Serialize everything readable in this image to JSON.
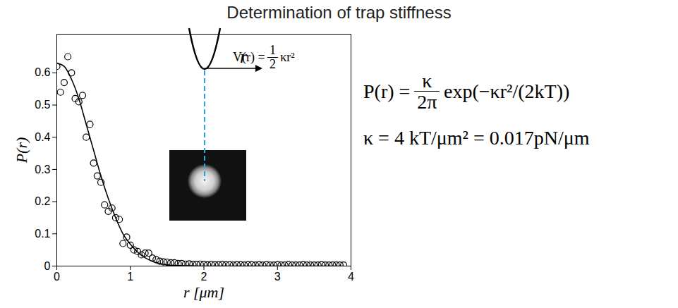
{
  "chart_data": {
    "type": "scatter",
    "title": "Determination of trap stiffness",
    "x_label": "r [μm]",
    "y_label": "P(r)",
    "xlim": [
      0,
      4
    ],
    "xticks": [
      0,
      1,
      2,
      3,
      4
    ],
    "ylim": [
      0,
      0.72
    ],
    "yticks": [
      0,
      0.1,
      0.2,
      0.3,
      0.4,
      0.5,
      0.6
    ],
    "grid": false,
    "points": {
      "marker": "circle",
      "color": "#000000",
      "x": [
        0,
        0.05,
        0.1,
        0.15,
        0.2,
        0.25,
        0.3,
        0.35,
        0.4,
        0.45,
        0.5,
        0.55,
        0.6,
        0.65,
        0.7,
        0.75,
        0.8,
        0.85,
        0.9,
        0.95,
        1.0,
        1.05,
        1.1,
        1.15,
        1.2,
        1.25,
        1.3,
        1.35,
        1.4,
        1.45,
        1.5,
        1.55,
        1.6,
        1.65,
        1.7,
        1.75,
        1.8,
        1.85,
        1.9,
        1.95,
        2.0,
        2.05,
        2.1,
        2.15,
        2.2,
        2.25,
        2.3,
        2.35,
        2.4,
        2.45,
        2.5,
        2.55,
        2.6,
        2.65,
        2.7,
        2.75,
        2.8,
        2.85,
        2.9,
        2.95,
        3.0,
        3.05,
        3.1,
        3.15,
        3.2,
        3.25,
        3.3,
        3.35,
        3.4,
        3.45,
        3.5,
        3.55,
        3.6,
        3.65,
        3.7,
        3.75,
        3.8,
        3.85,
        3.9
      ],
      "values": [
        0.62,
        0.54,
        0.57,
        0.65,
        0.6,
        0.52,
        0.51,
        0.53,
        0.4,
        0.44,
        0.32,
        0.28,
        0.26,
        0.19,
        0.17,
        0.18,
        0.15,
        0.145,
        0.07,
        0.09,
        0.065,
        0.05,
        0.045,
        0.035,
        0.04,
        0.04,
        0.025,
        0.02,
        0.015,
        0.013,
        0.012,
        0.01,
        0.01,
        0.008,
        0.008,
        0.006,
        0.007,
        0.005,
        0.005,
        0.006,
        0.005,
        0.004,
        0.005,
        0.004,
        0.004,
        0.005,
        0.004,
        0.004,
        0.003,
        0.004,
        0.004,
        0.003,
        0.004,
        0.004,
        0.003,
        0.004,
        0.003,
        0.004,
        0.003,
        0.003,
        0.004,
        0.003,
        0.003,
        0.004,
        0.003,
        0.003,
        0.003,
        0.004,
        0.003,
        0.003,
        0.003,
        0.003,
        0.004,
        0.003,
        0.003,
        0.003,
        0.003,
        0.003,
        0.003
      ]
    },
    "fit": {
      "type": "line",
      "color": "#000000",
      "x": [
        0,
        0.1,
        0.2,
        0.3,
        0.4,
        0.5,
        0.6,
        0.7,
        0.8,
        0.9,
        1.0,
        1.1,
        1.2,
        1.3,
        1.4,
        1.5,
        1.6,
        1.8,
        2.0,
        3.9
      ],
      "values": [
        0.63,
        0.62,
        0.58,
        0.52,
        0.44,
        0.36,
        0.28,
        0.21,
        0.15,
        0.1,
        0.068,
        0.043,
        0.026,
        0.015,
        0.008,
        0.004,
        0.002,
        0.001,
        0,
        0
      ]
    },
    "inset_formula": {
      "lhs": "V(r) =",
      "numerator": "1",
      "denominator": "2",
      "rest": "κr²"
    },
    "inset_axis_label": "r",
    "equations": [
      {
        "lhs": "P(r) =",
        "numerator": "κ",
        "denominator": "2π",
        "rest": "exp(−κr²/(2kT))"
      },
      {
        "text": "κ = 4 kT/μm² = 0.017pN/μm"
      }
    ]
  }
}
